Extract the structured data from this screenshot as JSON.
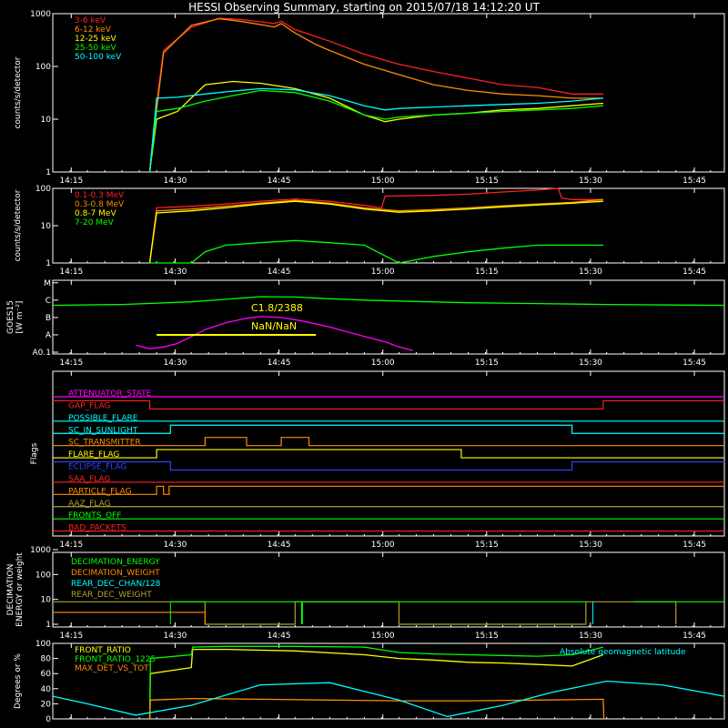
{
  "title": "HESSI Observing Summary, starting on 2015/07/18 14:12:20 UT",
  "colors": {
    "bg": "#000000",
    "axis": "#ffffff",
    "red": "#ff2020",
    "orange": "#ff8c00",
    "lightorange": "#ffb030",
    "yellow": "#ffff00",
    "green": "#00ff00",
    "cyan": "#00ffff",
    "magenta": "#ff00ff",
    "blue": "#3040ff",
    "olive": "#b0a030"
  },
  "time_ticks": [
    "14:15",
    "14:30",
    "14:45",
    "15:00",
    "15:15",
    "15:30",
    "15:45"
  ],
  "time_range_min": [
    0,
    97
  ],
  "time_ticks_min": [
    2.67,
    17.67,
    32.67,
    47.67,
    62.67,
    77.67,
    92.67
  ],
  "chart_data": [
    {
      "name": "lightcurve",
      "type": "line",
      "ylabel": "counts/s/detector",
      "yscale": "log",
      "ylim": [
        1,
        1000
      ],
      "ytick_labels": [
        "1",
        "10",
        "100",
        "1000"
      ],
      "ytick_values": [
        1,
        10,
        100,
        1000
      ],
      "series": [
        {
          "name": "3-6 keV",
          "color": "#ff2020",
          "x": [
            14,
            15,
            16,
            20,
            24,
            27,
            30,
            32,
            33,
            35,
            40,
            45,
            50,
            55,
            60,
            65,
            70,
            75,
            79.5
          ],
          "y": [
            0,
            20,
            200,
            550,
            820,
            780,
            700,
            650,
            720,
            500,
            300,
            170,
            110,
            80,
            60,
            45,
            40,
            30,
            30
          ]
        },
        {
          "name": "6-12 keV",
          "color": "#ff8c00",
          "x": [
            14,
            15,
            16,
            20,
            24,
            27,
            30,
            32,
            33,
            35,
            38,
            40,
            45,
            50,
            55,
            60,
            65,
            70,
            75,
            79.5
          ],
          "y": [
            0,
            15,
            180,
            600,
            800,
            720,
            620,
            560,
            650,
            430,
            260,
            200,
            110,
            70,
            45,
            35,
            30,
            28,
            25,
            25
          ]
        },
        {
          "name": "12-25 keV",
          "color": "#ffff00",
          "x": [
            14,
            15,
            18,
            22,
            26,
            30,
            35,
            40,
            45,
            48,
            50,
            55,
            60,
            65,
            70,
            75,
            79.5
          ],
          "y": [
            0,
            10,
            14,
            45,
            52,
            48,
            38,
            25,
            12,
            9,
            10,
            12,
            13,
            15,
            16,
            18,
            20
          ]
        },
        {
          "name": "25-50 keV",
          "color": "#00ff00",
          "x": [
            14,
            15,
            18,
            22,
            26,
            30,
            35,
            40,
            45,
            48,
            50,
            55,
            60,
            65,
            70,
            75,
            79.5
          ],
          "y": [
            0,
            14,
            16,
            22,
            28,
            35,
            32,
            22,
            12,
            10,
            11,
            12,
            13,
            14,
            15,
            16,
            18
          ]
        },
        {
          "name": "50-100 keV",
          "color": "#00ffff",
          "x": [
            14,
            15,
            18,
            22,
            26,
            30,
            35,
            40,
            45,
            48,
            50,
            55,
            60,
            65,
            70,
            75,
            79.5
          ],
          "y": [
            0,
            25,
            26,
            30,
            34,
            38,
            36,
            28,
            18,
            15,
            16,
            17,
            18,
            19,
            20,
            22,
            25
          ]
        }
      ],
      "legend": [
        {
          "name": "3-6 keV",
          "color": "#ff2020"
        },
        {
          "name": "6-12 keV",
          "color": "#ff8c00"
        },
        {
          "name": "12-25 keV",
          "color": "#ffff00"
        },
        {
          "name": "25-50 keV",
          "color": "#00ff00"
        },
        {
          "name": "50-100 keV",
          "color": "#00ffff"
        }
      ]
    },
    {
      "name": "gamma",
      "type": "line",
      "ylabel": "counts/s/detector",
      "yscale": "log",
      "ylim": [
        1,
        100
      ],
      "ytick_labels": [
        "1",
        "10",
        "100"
      ],
      "ytick_values": [
        1,
        10,
        100
      ],
      "series": [
        {
          "name": "0.1-0.3 MeV",
          "color": "#ff2020",
          "x": [
            14,
            15,
            20,
            25,
            30,
            35,
            40,
            45,
            47.5,
            48,
            55,
            60,
            65,
            70,
            73,
            73.5,
            75,
            79.5
          ],
          "y": [
            0,
            30,
            33,
            38,
            45,
            52,
            45,
            35,
            30,
            62,
            65,
            70,
            80,
            90,
            100,
            55,
            50,
            50
          ]
        },
        {
          "name": "0.3-0.8 MeV",
          "color": "#ff8c00",
          "x": [
            14,
            15,
            20,
            25,
            30,
            35,
            40,
            45,
            50,
            55,
            60,
            65,
            70,
            75,
            79.5
          ],
          "y": [
            0,
            25,
            28,
            33,
            40,
            48,
            40,
            30,
            25,
            27,
            30,
            34,
            38,
            42,
            50
          ]
        },
        {
          "name": "0.8-7 MeV",
          "color": "#ffff00",
          "x": [
            14,
            15,
            20,
            25,
            30,
            35,
            40,
            45,
            50,
            55,
            60,
            65,
            70,
            75,
            79.5
          ],
          "y": [
            0,
            22,
            25,
            30,
            38,
            45,
            38,
            28,
            23,
            25,
            28,
            32,
            36,
            40,
            45
          ]
        },
        {
          "name": "7-20 MeV",
          "color": "#00ff00",
          "x": [
            14,
            20,
            22,
            25,
            30,
            35,
            40,
            45,
            50,
            55,
            60,
            65,
            70,
            75,
            79.5
          ],
          "y": [
            1,
            1,
            2,
            3,
            3.5,
            4,
            3.5,
            3,
            1,
            1.5,
            2,
            2.5,
            3,
            3,
            3
          ]
        }
      ],
      "legend": [
        {
          "name": "0.1-0.3 MeV",
          "color": "#ff2020"
        },
        {
          "name": "0.3-0.8 MeV",
          "color": "#ff8c00"
        },
        {
          "name": "0.8-7 MeV",
          "color": "#ffff00"
        },
        {
          "name": "7-20 MeV",
          "color": "#00ff00"
        }
      ]
    },
    {
      "name": "goes",
      "type": "line",
      "ylabel": "GOES15",
      "ylabel2": "[W m⁻²]",
      "yscale": "log",
      "ytick_labels": [
        "A0.1",
        "A",
        "B",
        "C",
        "M"
      ],
      "ytick_values": [
        -8,
        -7,
        -6,
        -5,
        -4
      ],
      "annotation1": "C1.8/2388",
      "annotation2": "NaN/NaN",
      "series": [
        {
          "name": "goes-long",
          "color": "#00ff00",
          "x": [
            0,
            10,
            20,
            25,
            30,
            35,
            40,
            45,
            50,
            60,
            70,
            80,
            90,
            97
          ],
          "y": [
            -5.3,
            -5.25,
            -5.1,
            -4.95,
            -4.8,
            -4.82,
            -4.92,
            -5.0,
            -5.05,
            -5.15,
            -5.2,
            -5.25,
            -5.28,
            -5.3
          ]
        },
        {
          "name": "goes-short",
          "color": "#ff00ff",
          "x": [
            12,
            14,
            16,
            18,
            20,
            22,
            25,
            28,
            30,
            33,
            36,
            40,
            45,
            48,
            50,
            52
          ],
          "y": [
            -7.6,
            -7.8,
            -7.7,
            -7.5,
            -7.1,
            -6.7,
            -6.3,
            -6.05,
            -5.95,
            -6.0,
            -6.2,
            -6.55,
            -7.1,
            -7.4,
            -7.7,
            -7.9
          ]
        }
      ],
      "nan_line": {
        "x": [
          15,
          38
        ],
        "y": -7.0,
        "color": "#ffff00"
      }
    },
    {
      "name": "flags",
      "type": "step",
      "ylabel": "Flags",
      "flags": [
        {
          "name": "ATTENUATOR_STATE",
          "color": "#ff00ff",
          "segments": [
            [
              0,
              97,
              0
            ]
          ]
        },
        {
          "name": "GAP_FLAG",
          "color": "#ff2020",
          "segments": [
            [
              0,
              14,
              1
            ],
            [
              14,
              79.5,
              0
            ],
            [
              79.5,
              97,
              1
            ]
          ]
        },
        {
          "name": "POSSIBLE_FLARE",
          "color": "#00ffff",
          "segments": [
            [
              0,
              97,
              0
            ]
          ]
        },
        {
          "name": "SC_IN_SUNLIGHT",
          "color": "#00ffff",
          "segments": [
            [
              0,
              17,
              0
            ],
            [
              17,
              75,
              1
            ],
            [
              75,
              97,
              0
            ]
          ]
        },
        {
          "name": "SC_TRANSMITTER",
          "color": "#ff8c00",
          "segments": [
            [
              0,
              22,
              0
            ],
            [
              22,
              24,
              1
            ],
            [
              24,
              25,
              1
            ],
            [
              25,
              28,
              1
            ],
            [
              28,
              33,
              0
            ],
            [
              33,
              37,
              1
            ],
            [
              37,
              97,
              0
            ]
          ]
        },
        {
          "name": "FLARE_FLAG",
          "color": "#ffff00",
          "segments": [
            [
              0,
              15,
              0
            ],
            [
              15,
              59,
              1
            ],
            [
              59,
              97,
              0
            ]
          ]
        },
        {
          "name": "ECLIPSE_FLAG",
          "color": "#3040ff",
          "segments": [
            [
              0,
              17,
              1
            ],
            [
              17,
              75,
              0
            ],
            [
              75,
              97,
              1
            ]
          ]
        },
        {
          "name": "SAA_FLAG",
          "color": "#ff2020",
          "segments": [
            [
              0,
              97,
              0
            ]
          ]
        },
        {
          "name": "PARTICLE_FLAG",
          "color": "#ff8c00",
          "segments": [
            [
              0,
              15,
              0
            ],
            [
              15,
              16,
              1
            ],
            [
              16,
              16.8,
              0
            ],
            [
              16.8,
              97,
              1
            ]
          ]
        },
        {
          "name": "AAZ_FLAG",
          "color": "#b0a030",
          "segments": [
            [
              0,
              97,
              0
            ]
          ]
        },
        {
          "name": "FRONTS_OFF",
          "color": "#00ff00",
          "segments": [
            [
              0,
              97,
              0
            ]
          ]
        },
        {
          "name": "BAD_PACKETS",
          "color": "#ff2020",
          "segments": [
            [
              0,
              97,
              0
            ]
          ]
        }
      ]
    },
    {
      "name": "decimation",
      "type": "step",
      "ylabel": "DECIMATION",
      "ylabel2": "ENERGY or weight",
      "yscale": "log",
      "ytick_labels": [
        "1",
        "10",
        "100",
        "1000"
      ],
      "ytick_values": [
        1,
        10,
        100,
        1000
      ],
      "legend": [
        {
          "name": "DECIMATION_ENERGY",
          "color": "#00ff00"
        },
        {
          "name": "DECIMATION_WEIGHT",
          "color": "#ff8c00"
        },
        {
          "name": "REAR_DEC_CHAN/128",
          "color": "#00ffff"
        },
        {
          "name": "REAR_DEC_WEIGHT",
          "color": "#b0a030"
        }
      ]
    },
    {
      "name": "ratios",
      "type": "line",
      "ylabel": "Degrees or %",
      "ylim": [
        0,
        100
      ],
      "ytick_labels": [
        "0",
        "20",
        "40",
        "60",
        "80",
        "100"
      ],
      "ytick_values": [
        0,
        20,
        40,
        60,
        80,
        100
      ],
      "legend": [
        {
          "name": "FRONT_RATIO",
          "color": "#ffff00"
        },
        {
          "name": "FRONT_RATIO_1225",
          "color": "#00ff00"
        },
        {
          "name": "MAX_DET_VS_TOT",
          "color": "#ff8c00"
        }
      ],
      "legend_right": {
        "name": "Absolute geomagnetic latitude",
        "color": "#00ffff"
      },
      "series": [
        {
          "name": "FRONT_RATIO",
          "color": "#ffff00",
          "x": [
            14,
            14.1,
            20,
            20.2,
            25,
            35,
            45,
            50,
            55,
            60,
            65,
            70,
            75,
            79.5
          ],
          "y": [
            0,
            60,
            68,
            92,
            92,
            90,
            85,
            80,
            78,
            75,
            74,
            72,
            70,
            85
          ]
        },
        {
          "name": "FRONT_RATIO_1225",
          "color": "#00ff00",
          "x": [
            14,
            14.1,
            20,
            20.2,
            25,
            35,
            45,
            50,
            55,
            60,
            65,
            70,
            75,
            79.5
          ],
          "y": [
            0,
            80,
            85,
            95,
            96,
            96,
            95,
            88,
            86,
            85,
            84,
            83,
            85,
            95
          ]
        },
        {
          "name": "MAX_DET_VS_TOT",
          "color": "#ff8c00",
          "x": [
            14,
            14.1,
            20,
            30,
            40,
            50,
            60,
            70,
            79.5,
            79.6
          ],
          "y": [
            0,
            25,
            27,
            26,
            25,
            24,
            24,
            25,
            26,
            0
          ]
        },
        {
          "name": "Absolute geomagnetic latitude",
          "color": "#00ffff",
          "x": [
            0,
            5,
            12,
            20,
            30,
            40,
            50,
            57,
            65,
            72,
            80,
            88,
            97
          ],
          "y": [
            30,
            20,
            5,
            18,
            45,
            48,
            25,
            3,
            18,
            35,
            50,
            45,
            30
          ]
        }
      ]
    }
  ]
}
